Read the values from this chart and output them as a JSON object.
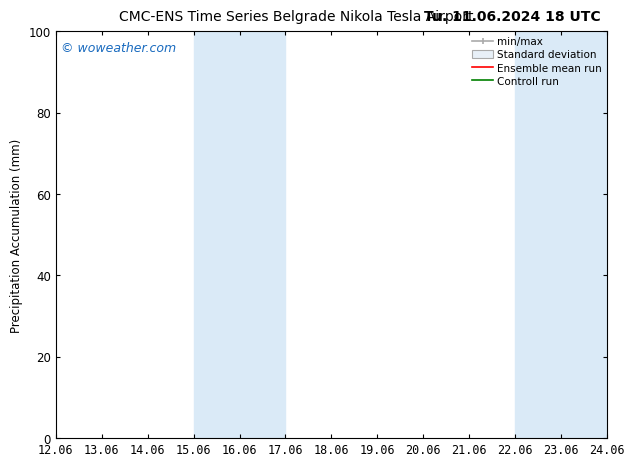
{
  "title": "CMC-ENS Time Series Belgrade Nikola Tesla Airport     Tu. 11.06.2024 18 UTC",
  "title_left": "CMC-ENS Time Series Belgrade Nikola Tesla Airport",
  "title_right": "Tu. 11.06.2024 18 UTC",
  "ylabel": "Precipitation Accumulation (mm)",
  "watermark": "© woweather.com",
  "watermark_color": "#1a6bbf",
  "ylim": [
    0,
    100
  ],
  "yticks": [
    0,
    20,
    40,
    60,
    80,
    100
  ],
  "x_start": 12.06,
  "x_end": 24.06,
  "xtick_labels": [
    "12.06",
    "13.06",
    "14.06",
    "15.06",
    "16.06",
    "17.06",
    "18.06",
    "19.06",
    "20.06",
    "21.06",
    "22.06",
    "23.06",
    "24.06"
  ],
  "xtick_values": [
    12.06,
    13.06,
    14.06,
    15.06,
    16.06,
    17.06,
    18.06,
    19.06,
    20.06,
    21.06,
    22.06,
    23.06,
    24.06
  ],
  "shaded_bands": [
    {
      "x_start": 15.06,
      "x_end": 17.06
    },
    {
      "x_start": 22.06,
      "x_end": 24.06
    }
  ],
  "shade_color": "#daeaf7",
  "background_color": "#ffffff",
  "legend_entries": [
    {
      "label": "min/max"
    },
    {
      "label": "Standard deviation"
    },
    {
      "label": "Ensemble mean run"
    },
    {
      "label": "Controll run"
    }
  ],
  "font_size_title": 10,
  "font_size_axis": 8.5,
  "font_size_legend": 7.5,
  "font_size_watermark": 9,
  "minmax_color": "#aaaaaa",
  "std_face_color": "#e8f0f8",
  "std_edge_color": "#aaaaaa",
  "ensemble_color": "#ff0000",
  "control_color": "#008000"
}
